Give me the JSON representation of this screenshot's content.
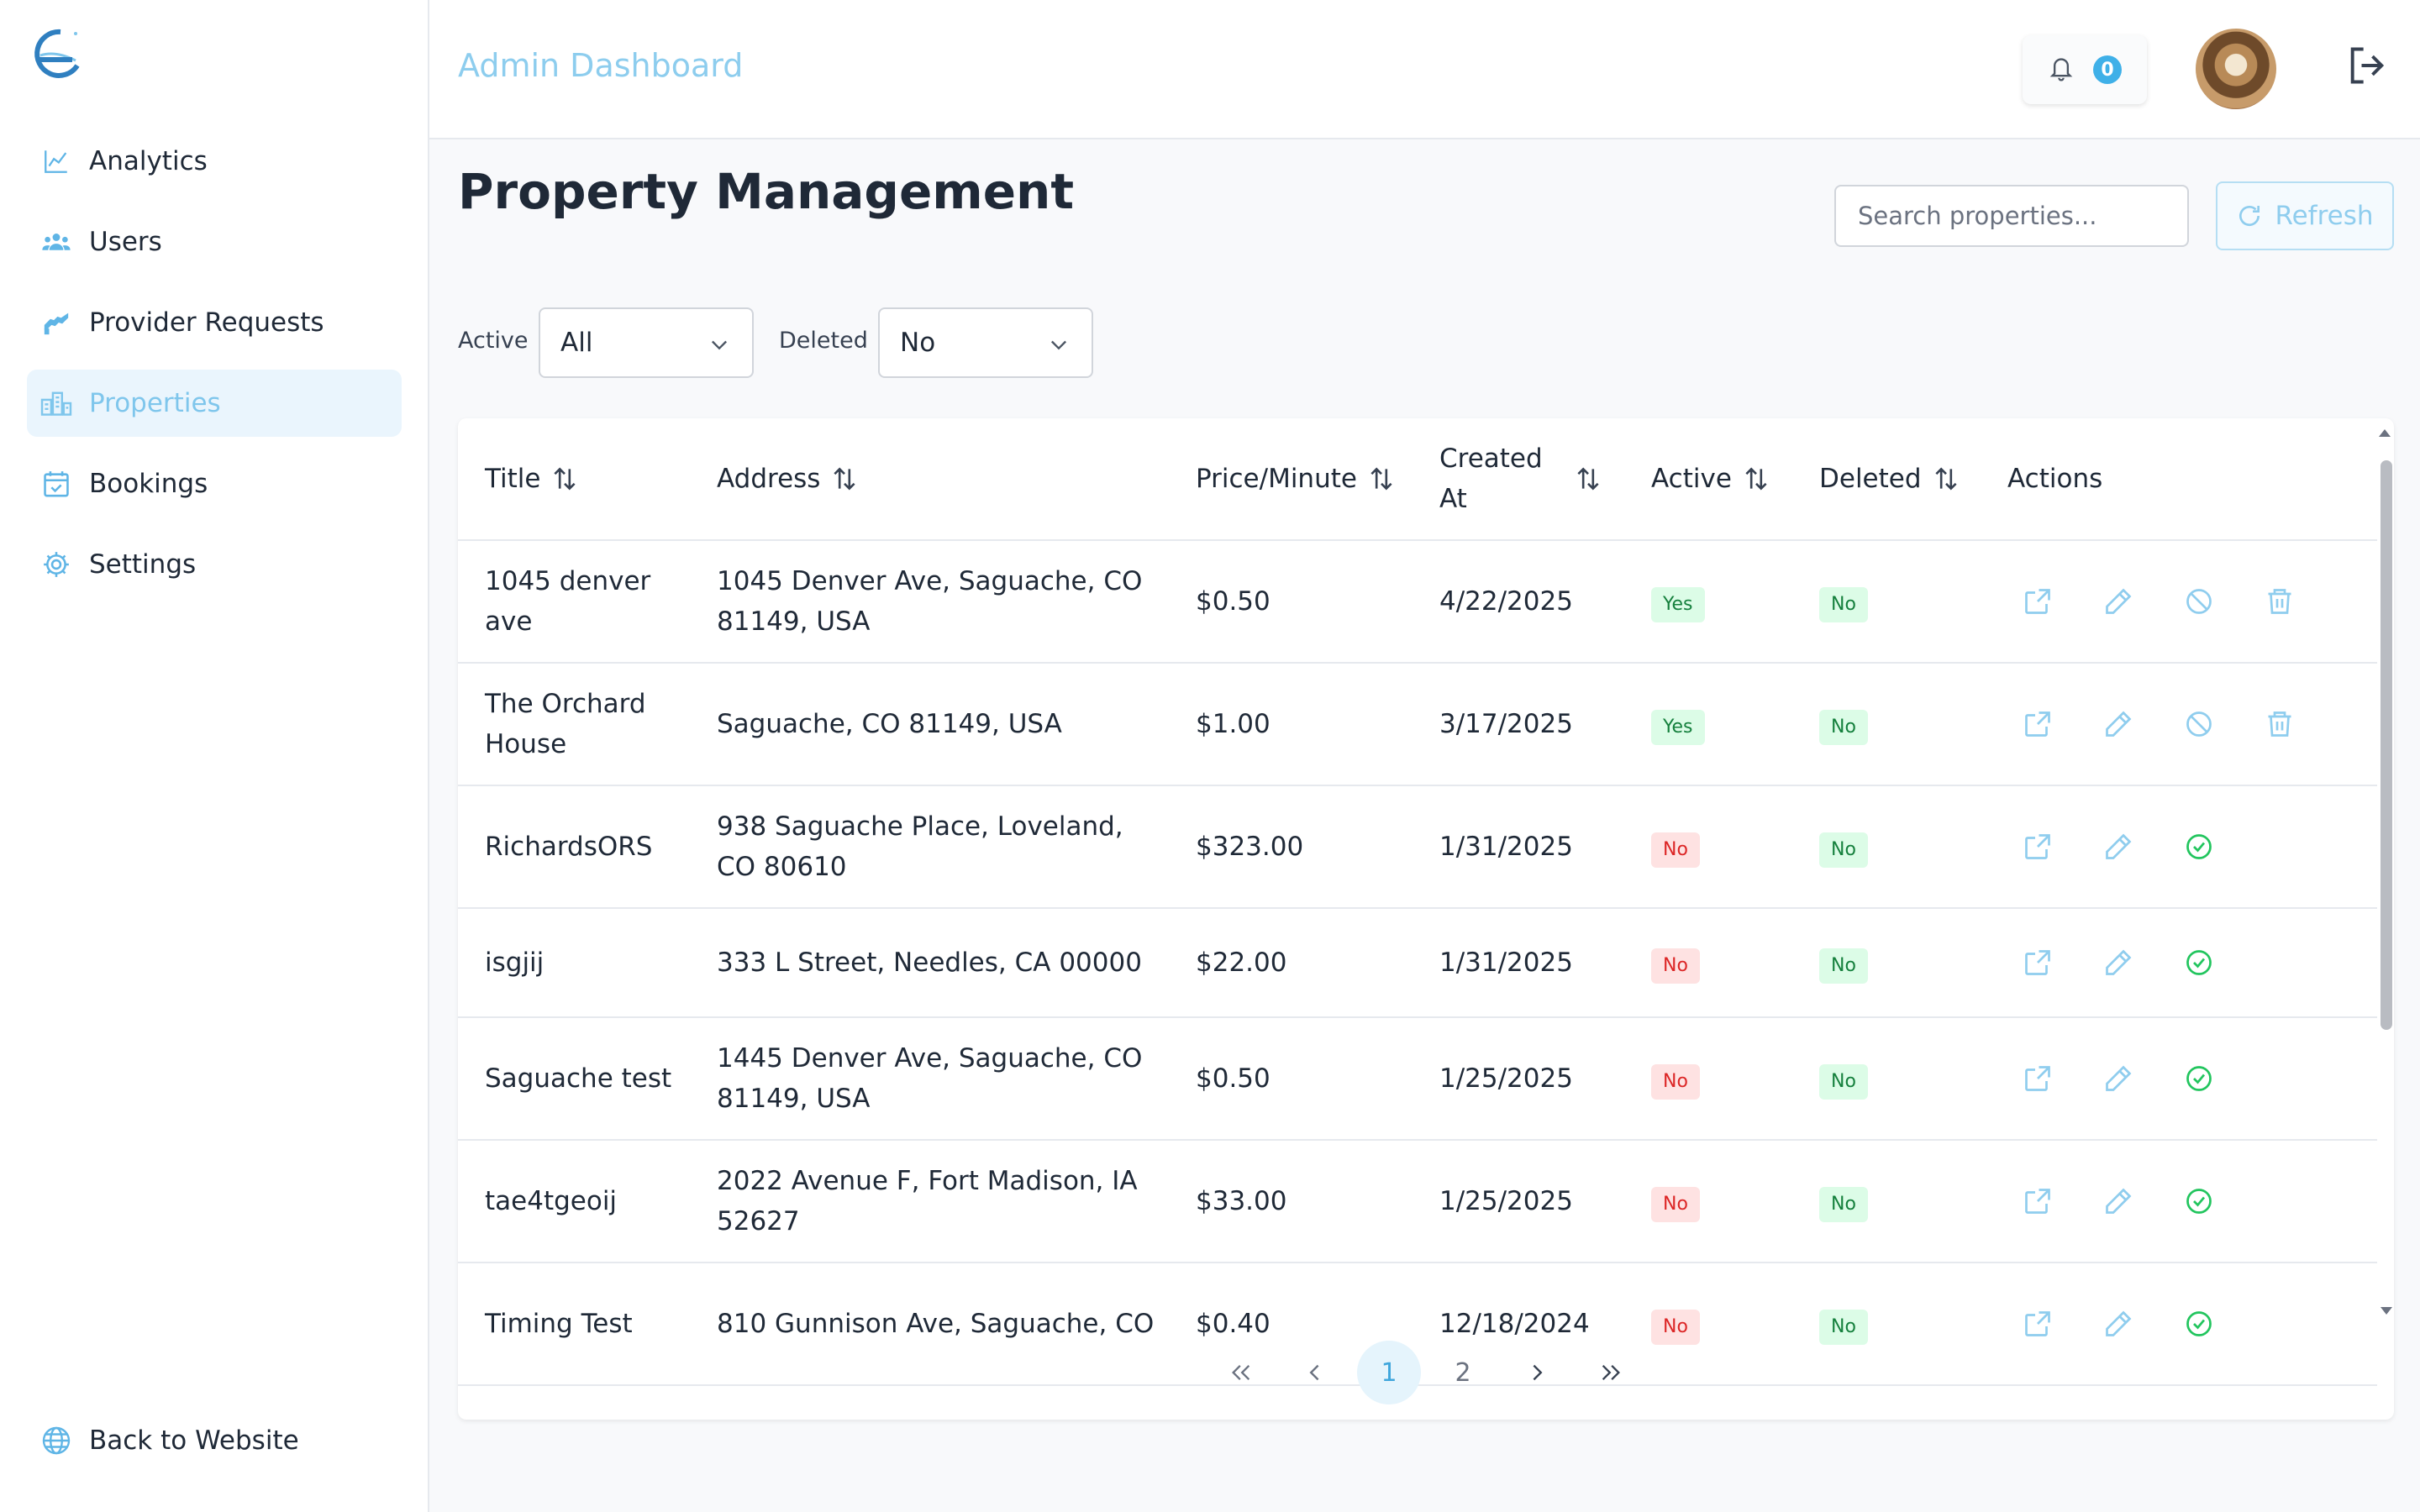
{
  "header": {
    "app_title": "Admin Dashboard",
    "notifications_count": "0"
  },
  "sidebar": {
    "items": [
      {
        "label": "Analytics",
        "icon": "chart-line-icon"
      },
      {
        "label": "Users",
        "icon": "users-icon"
      },
      {
        "label": "Provider Requests",
        "icon": "handshake-icon"
      },
      {
        "label": "Properties",
        "icon": "buildings-icon",
        "active": true
      },
      {
        "label": "Bookings",
        "icon": "calendar-check-icon"
      },
      {
        "label": "Settings",
        "icon": "gear-icon"
      }
    ],
    "back_label": "Back to Website"
  },
  "page": {
    "title": "Property Management",
    "search_placeholder": "Search properties...",
    "refresh_label": "Refresh"
  },
  "filters": {
    "active_label": "Active",
    "active_value": "All",
    "deleted_label": "Deleted",
    "deleted_value": "No"
  },
  "table": {
    "columns": [
      "Title",
      "Address",
      "Price/Minute",
      "Created At",
      "Active",
      "Deleted",
      "Actions"
    ],
    "created_at_line1": "Created",
    "created_at_line2": "At",
    "rows": [
      {
        "title": "1045 denver ave",
        "address": "1045 Denver Ave, Saguache, CO 81149, USA",
        "price": "$0.50",
        "created": "4/22/2025",
        "active": "Yes",
        "deleted": "No"
      },
      {
        "title": "The Orchard House",
        "address": "Saguache, CO 81149, USA",
        "price": "$1.00",
        "created": "3/17/2025",
        "active": "Yes",
        "deleted": "No"
      },
      {
        "title": "RichardsORS",
        "address": "938 Saguache Place, Loveland, CO 80610",
        "price": "$323.00",
        "created": "1/31/2025",
        "active": "No",
        "deleted": "No"
      },
      {
        "title": "isgjij",
        "address": "333 L Street, Needles, CA 00000",
        "price": "$22.00",
        "created": "1/31/2025",
        "active": "No",
        "deleted": "No"
      },
      {
        "title": "Saguache test",
        "address": "1445 Denver Ave, Saguache, CO 81149, USA",
        "price": "$0.50",
        "created": "1/25/2025",
        "active": "No",
        "deleted": "No"
      },
      {
        "title": "tae4tgeoij",
        "address": "2022 Avenue F, Fort Madison, IA 52627",
        "price": "$33.00",
        "created": "1/25/2025",
        "active": "No",
        "deleted": "No"
      },
      {
        "title": "Timing Test",
        "address": "810 Gunnison Ave, Saguache, CO",
        "price": "$0.40",
        "created": "12/18/2024",
        "active": "No",
        "deleted": "No"
      }
    ]
  },
  "pagination": {
    "pages": [
      "1",
      "2"
    ],
    "current": "1"
  },
  "colors": {
    "accent": "#3fb0e8",
    "accent_light": "#8dcdee",
    "active_bg": "#eaf5fd",
    "yes_green": "#15803d",
    "no_red": "#dc2626"
  }
}
